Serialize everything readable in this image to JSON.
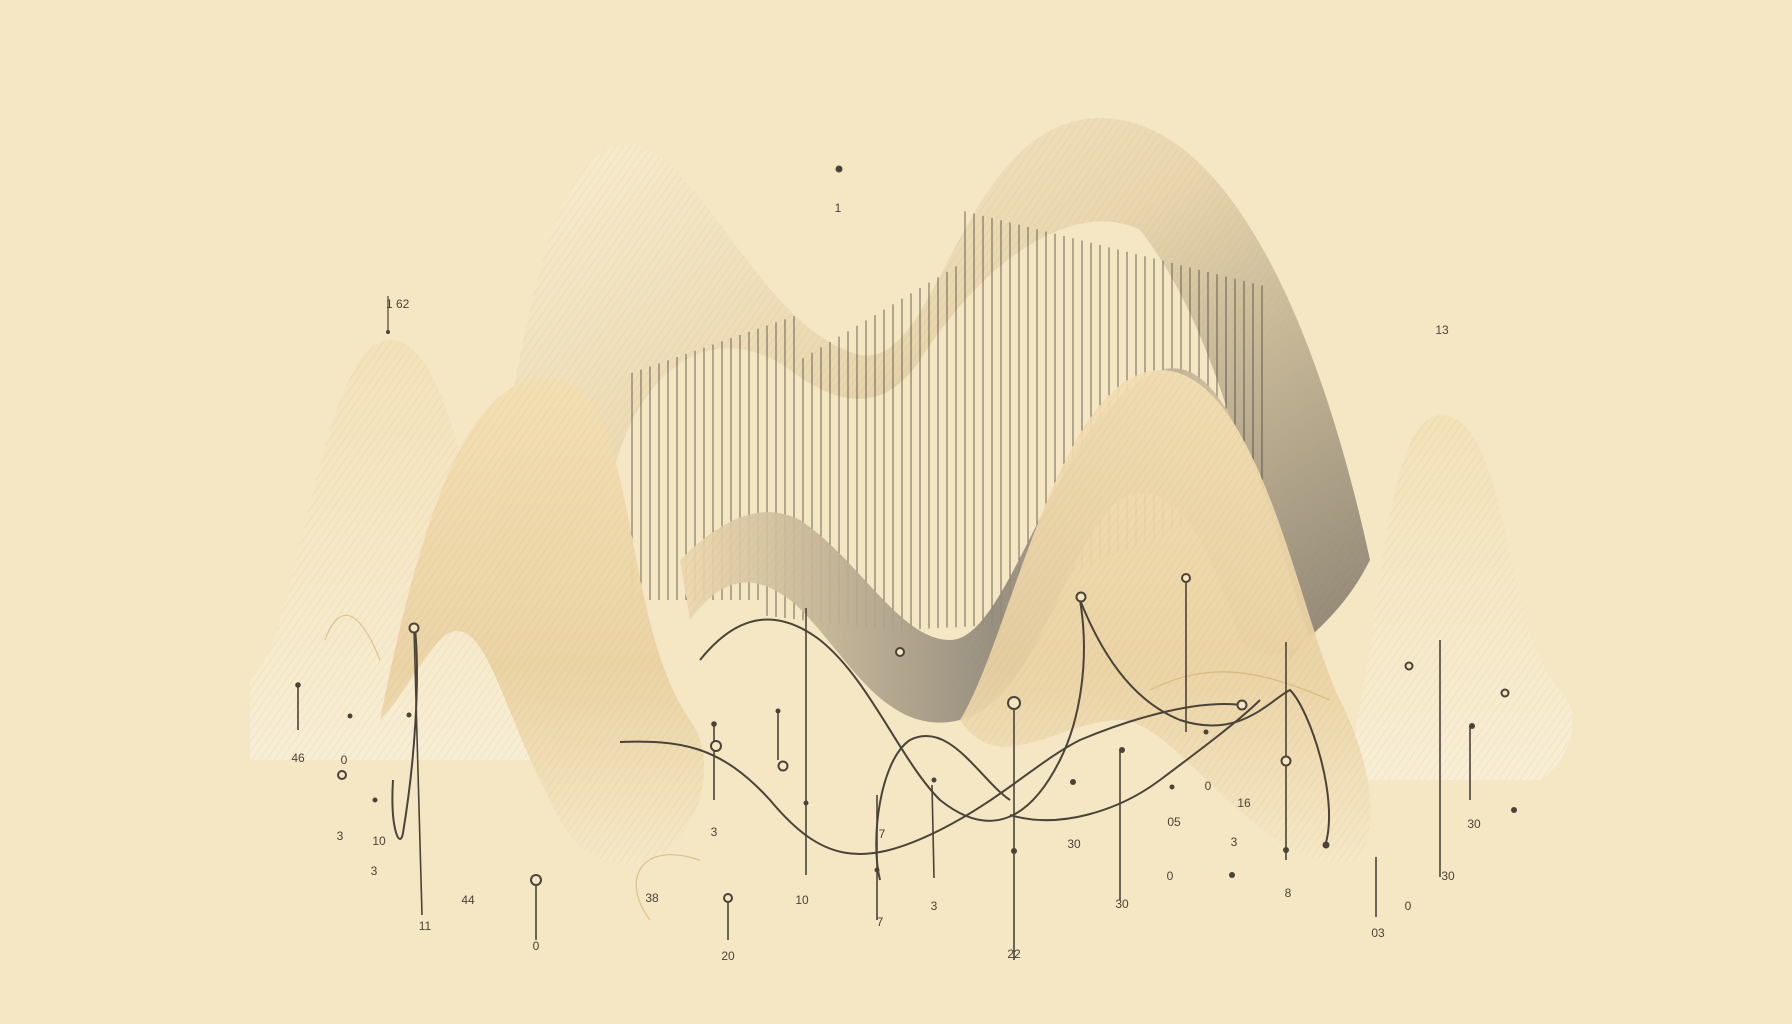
{
  "palette": {
    "background": "#f5e6c4",
    "wave_light": "#fbf0d4",
    "wave_mid": "#ecd7ab",
    "wave_shadow": "#7a7466",
    "line": "#4a4338",
    "accent_gold": "#c9a866"
  },
  "labels": {
    "l_1": "1",
    "l_1_62": "1 62",
    "l_13": "13",
    "l_46": "46",
    "l_0_a": "0",
    "l_3_a": "3",
    "l_10_a": "10",
    "l_3_b": "3",
    "l_44": "44",
    "l_11": "11",
    "l_0_b": "0",
    "l_38": "38",
    "l_20_a": "20",
    "l_3_c": "3",
    "l_10_b": "10",
    "l_7_a": "7",
    "l_7_b": "7",
    "l_3_d": "3",
    "l_22": "22",
    "l_30_a": "30",
    "l_30_b": "30",
    "l_0_c": "0",
    "l_05": "05",
    "l_16": "16",
    "l_3_e": "3",
    "l_0_d": "0",
    "l_8": "8",
    "l_03": "03",
    "l_0_e": "0",
    "l_30_c": "30",
    "l_30_d": "30"
  }
}
